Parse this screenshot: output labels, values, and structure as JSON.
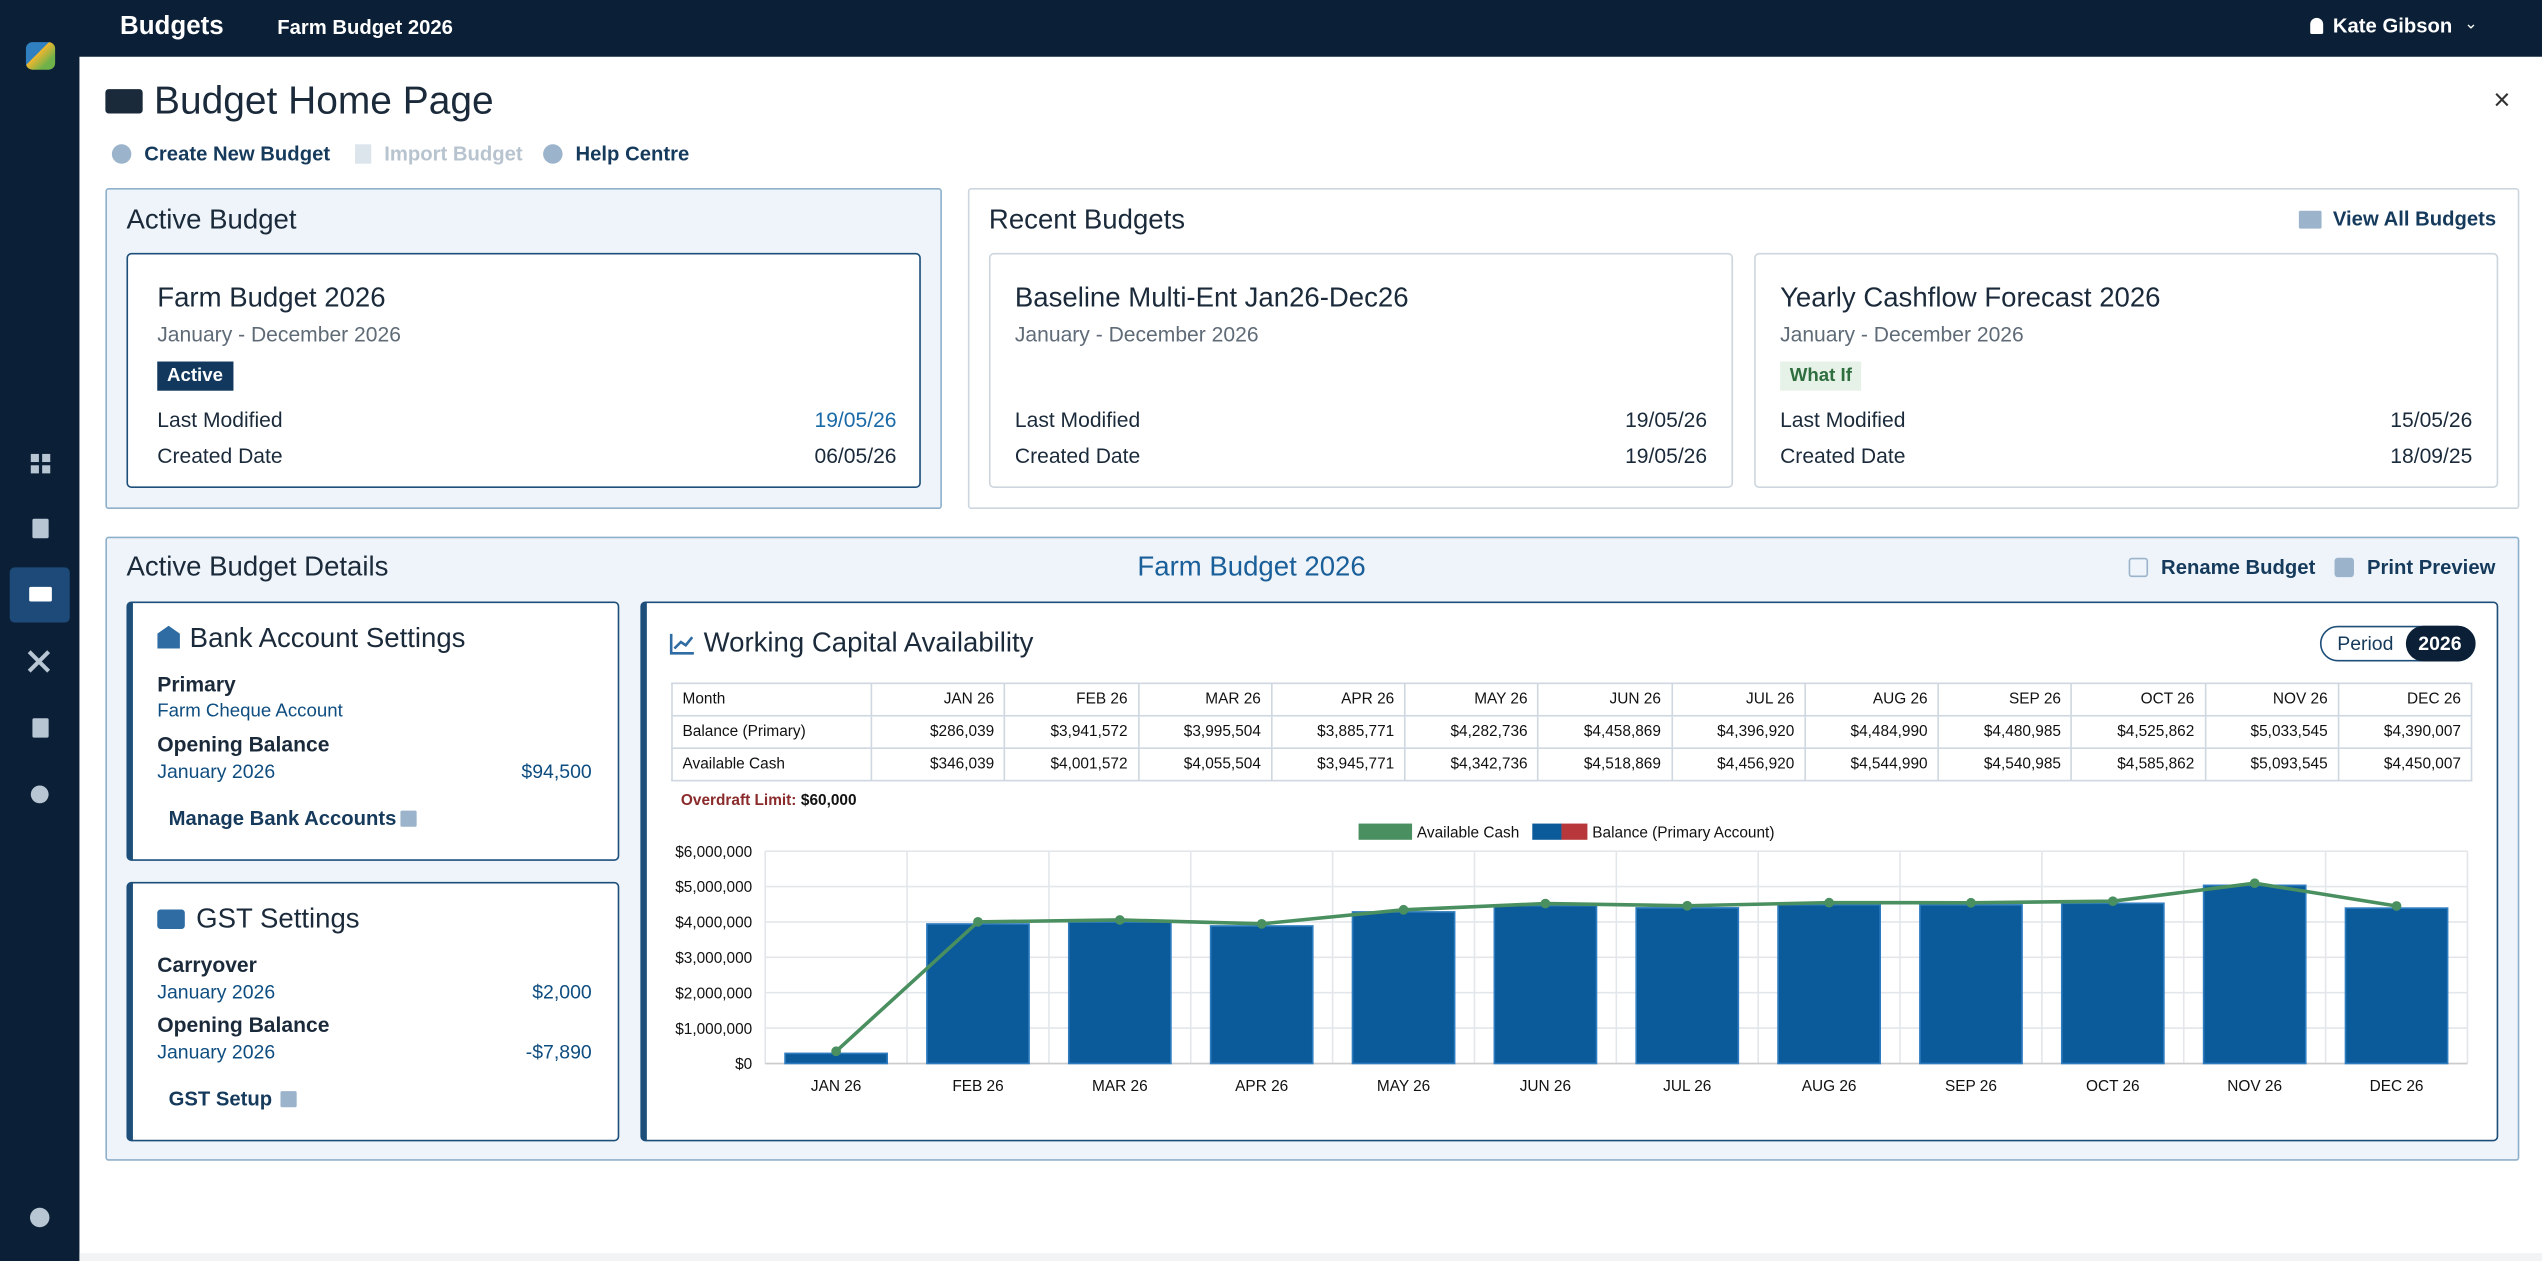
{
  "header": {
    "app": "Budgets",
    "budget": "Farm Budget 2026",
    "user": "Kate Gibson"
  },
  "page": {
    "title": "Budget Home Page",
    "actions": [
      "Create New Budget",
      "Import Budget",
      "Help Centre"
    ]
  },
  "active_budget": {
    "heading": "Active Budget",
    "card": {
      "name": "Farm Budget 2026",
      "period": "January - December 2026",
      "badge": "Active",
      "rows": [
        [
          "Last Modified",
          "19/05/26"
        ],
        [
          "Created Date",
          "06/05/26"
        ]
      ]
    }
  },
  "recent_budgets": {
    "heading": "Recent Budgets",
    "link": "View All Budgets",
    "cards": [
      {
        "name": "Baseline Multi-Ent Jan26-Dec26",
        "period": "January - December 2026",
        "rows": [
          [
            "Last Modified",
            "19/05/26"
          ],
          [
            "Created Date",
            "19/05/26"
          ]
        ]
      },
      {
        "name": "Yearly Cashflow Forecast 2026",
        "period": "January - December 2026",
        "badge": "What If",
        "rows": [
          [
            "Last Modified",
            "15/05/26"
          ],
          [
            "Created Date",
            "18/09/25"
          ]
        ]
      }
    ]
  },
  "details": {
    "heading": "Active Budget Details",
    "budget": "Farm Budget 2026",
    "actions": [
      "Rename Budget",
      "Print Preview"
    ]
  },
  "bank": {
    "title": "Bank Account Settings",
    "primary_label": "Primary",
    "account": "Farm Cheque Account",
    "opening_label": "Opening Balance",
    "opening_month": "January 2026",
    "opening_value": "$94,500",
    "link": "Manage Bank Accounts"
  },
  "gst": {
    "title": "GST Settings",
    "carryover_label": "Carryover",
    "carryover_month": "January 2026",
    "carryover_value": "$2,000",
    "opening_label": "Opening Balance",
    "opening_month": "January 2026",
    "opening_value": "-$7,890",
    "link": "GST Setup"
  },
  "working_capital": {
    "title": "Working Capital Availability",
    "toggle": [
      "Period",
      "2026"
    ],
    "table": {
      "header": "Month",
      "row_labels": [
        "Balance (Primary)",
        "Available Cash"
      ]
    },
    "overdraft_label": "Overdraft Limit:",
    "overdraft_value": "$60,000"
  },
  "chart_data": {
    "type": "bar",
    "categories": [
      "JAN 26",
      "FEB 26",
      "MAR 26",
      "APR 26",
      "MAY 26",
      "JUN 26",
      "JUL 26",
      "AUG 26",
      "SEP 26",
      "OCT 26",
      "NOV 26",
      "DEC 26"
    ],
    "series": [
      {
        "name": "Available Cash",
        "type": "line",
        "color": "#4a8f5f",
        "values": [
          346039,
          4001572,
          4055504,
          3945771,
          4342736,
          4518869,
          4456920,
          4544990,
          4540985,
          4585862,
          5093545,
          4450007
        ],
        "value_labels": [
          "$346,039",
          "$4,001,572",
          "$4,055,504",
          "$3,945,771",
          "$4,342,736",
          "$4,518,869",
          "$4,456,920",
          "$4,544,990",
          "$4,540,985",
          "$4,585,862",
          "$5,093,545",
          "$4,450,007"
        ]
      },
      {
        "name": "Balance (Primary Account)",
        "color": "#0b5a99",
        "negative_color": "#b8373a",
        "values": [
          286039,
          3941572,
          3995504,
          3885771,
          4282736,
          4458869,
          4396920,
          4484990,
          4480985,
          4525862,
          5033545,
          4390007
        ],
        "value_labels": [
          "$286,039",
          "$3,941,572",
          "$3,995,504",
          "$3,885,771",
          "$4,282,736",
          "$4,458,869",
          "$4,396,920",
          "$4,484,990",
          "$4,480,985",
          "$4,525,862",
          "$5,033,545",
          "$4,390,007"
        ]
      }
    ],
    "ylim": [
      0,
      6000000
    ],
    "yticks": [
      {
        "value": 0,
        "label": "$0"
      },
      {
        "value": 1000000,
        "label": "$1,000,000"
      },
      {
        "value": 2000000,
        "label": "$2,000,000"
      },
      {
        "value": 3000000,
        "label": "$3,000,000"
      },
      {
        "value": 4000000,
        "label": "$4,000,000"
      },
      {
        "value": 5000000,
        "label": "$5,000,000"
      },
      {
        "value": 6000000,
        "label": "$6,000,000"
      }
    ],
    "grid": true,
    "legend": "top"
  }
}
